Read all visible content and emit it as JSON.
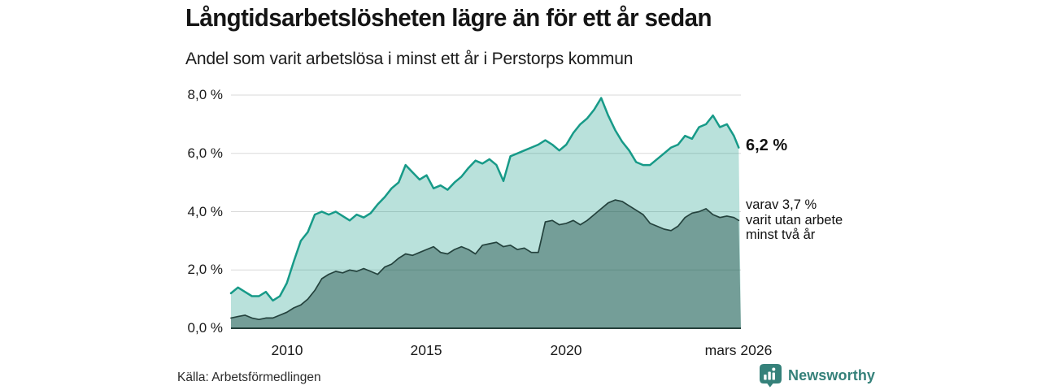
{
  "chart_data": {
    "type": "area",
    "title": "Långtidsarbetslösheten lägre än för ett år sedan",
    "subtitle": "Andel som varit arbetslösa i minst ett år i Perstorps kommun",
    "xlabel": "",
    "ylabel": "",
    "ylim": [
      0,
      8
    ],
    "xlim": [
      2008,
      2026.25
    ],
    "grid": true,
    "legend_position": "none",
    "yticks": [
      {
        "value": 8,
        "label": "8,0 %"
      },
      {
        "value": 6,
        "label": "6,0 %"
      },
      {
        "value": 4,
        "label": "4,0 %"
      },
      {
        "value": 2,
        "label": "2,0 %"
      },
      {
        "value": 0,
        "label": "0,0 %"
      }
    ],
    "xticks": [
      {
        "value": 2010,
        "label": "2010"
      },
      {
        "value": 2015,
        "label": "2015"
      },
      {
        "value": 2020,
        "label": "2020"
      },
      {
        "value": 2026.17,
        "label": "mars 2026"
      }
    ],
    "x": [
      2008,
      2008.25,
      2008.5,
      2008.75,
      2009,
      2009.25,
      2009.5,
      2009.75,
      2010,
      2010.25,
      2010.5,
      2010.75,
      2011,
      2011.25,
      2011.5,
      2011.75,
      2012,
      2012.25,
      2012.5,
      2012.75,
      2013,
      2013.25,
      2013.5,
      2013.75,
      2014,
      2014.25,
      2014.5,
      2014.75,
      2015,
      2015.25,
      2015.5,
      2015.75,
      2016,
      2016.25,
      2016.5,
      2016.75,
      2017,
      2017.25,
      2017.5,
      2017.75,
      2018,
      2018.25,
      2018.5,
      2018.75,
      2019,
      2019.25,
      2019.5,
      2019.75,
      2020,
      2020.25,
      2020.5,
      2020.75,
      2021,
      2021.25,
      2021.5,
      2021.75,
      2022,
      2022.25,
      2022.5,
      2022.75,
      2023,
      2023.25,
      2023.5,
      2023.75,
      2024,
      2024.25,
      2024.5,
      2024.75,
      2025,
      2025.25,
      2025.5,
      2025.75,
      2026,
      2026.17
    ],
    "series": [
      {
        "name": "Andel som varit arbetslösa i minst ett år",
        "line_color": "#179a88",
        "fill_color": "rgba(23,154,136,0.30)",
        "latest_value": "6,2 %",
        "values": [
          1.2,
          1.4,
          1.25,
          1.1,
          1.1,
          1.25,
          0.95,
          1.1,
          1.55,
          2.3,
          3.0,
          3.3,
          3.9,
          4.0,
          3.9,
          4.0,
          3.85,
          3.7,
          3.9,
          3.8,
          3.95,
          4.25,
          4.5,
          4.8,
          5.0,
          5.6,
          5.35,
          5.1,
          5.25,
          4.8,
          4.9,
          4.75,
          5.0,
          5.2,
          5.5,
          5.75,
          5.65,
          5.8,
          5.6,
          5.05,
          5.9,
          6.0,
          6.1,
          6.2,
          6.3,
          6.45,
          6.3,
          6.1,
          6.3,
          6.7,
          7.0,
          7.2,
          7.5,
          7.9,
          7.3,
          6.8,
          6.4,
          6.1,
          5.7,
          5.6,
          5.6,
          5.8,
          6.0,
          6.2,
          6.3,
          6.6,
          6.5,
          6.9,
          7.0,
          7.3,
          6.9,
          7.0,
          6.6,
          6.2
        ]
      },
      {
        "name": "varav varit utan arbete minst två år",
        "line_color": "#24423d",
        "fill_color": "rgba(21,66,60,0.42)",
        "latest_value": "3,7 %",
        "values": [
          0.35,
          0.4,
          0.45,
          0.35,
          0.3,
          0.35,
          0.35,
          0.45,
          0.55,
          0.7,
          0.8,
          1.0,
          1.3,
          1.7,
          1.85,
          1.95,
          1.9,
          2.0,
          1.95,
          2.05,
          1.95,
          1.85,
          2.1,
          2.2,
          2.4,
          2.55,
          2.5,
          2.6,
          2.7,
          2.8,
          2.6,
          2.55,
          2.7,
          2.8,
          2.7,
          2.55,
          2.85,
          2.9,
          2.95,
          2.8,
          2.85,
          2.7,
          2.75,
          2.6,
          2.6,
          3.65,
          3.7,
          3.55,
          3.6,
          3.7,
          3.55,
          3.7,
          3.9,
          4.1,
          4.3,
          4.4,
          4.35,
          4.2,
          4.05,
          3.9,
          3.6,
          3.5,
          3.4,
          3.35,
          3.5,
          3.8,
          3.95,
          4.0,
          4.1,
          3.9,
          3.8,
          3.85,
          3.8,
          3.7
        ]
      }
    ]
  },
  "annotations": {
    "latest_value": "6,2 %",
    "note_lines": [
      "varav 3,7 %",
      "varit utan arbete",
      "minst två år"
    ]
  },
  "footer": {
    "source": "Källa: Arbetsförmedlingen",
    "brand": "Newsworthy",
    "brand_color": "#35817a"
  }
}
